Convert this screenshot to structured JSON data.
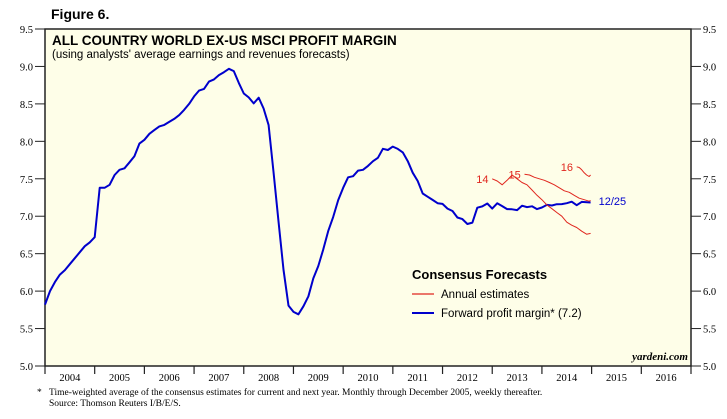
{
  "figure_label": "Figure 6.",
  "footnote": {
    "marker": "*",
    "text": "Time-weighted average of the consensus estimates for current and next year. Monthly through December 2005, weekly thereafter.",
    "source": "Source: Thomson Reuters I/B/E/S."
  },
  "colors": {
    "plot_background": "#fefee8",
    "forward": "#0000cc",
    "annual": "#e0271f",
    "axis": "#222222"
  },
  "chart_data": {
    "type": "line",
    "title": "ALL COUNTRY WORLD EX-US MSCI PROFIT MARGIN",
    "subtitle": "(using analysts' average earnings and revenues forecasts)",
    "xlabel": "",
    "ylabel": "",
    "xlim": [
      2004.0,
      2017.0
    ],
    "ylim": [
      5.0,
      9.5
    ],
    "x_ticks": [
      "2004",
      "2005",
      "2006",
      "2007",
      "2008",
      "2009",
      "2010",
      "2011",
      "2012",
      "2013",
      "2014",
      "2015",
      "2016"
    ],
    "y_ticks_left": [
      "5.0",
      "5.5",
      "6.0",
      "6.5",
      "7.0",
      "7.5",
      "8.0",
      "8.5",
      "9.0",
      "9.5"
    ],
    "y_ticks_right": [
      "5.0",
      "5.5",
      "6.0",
      "6.5",
      "7.0",
      "7.5",
      "8.0",
      "8.5",
      "9.0",
      "9.5"
    ],
    "grid": false,
    "legend": {
      "title": "Consensus Forecasts",
      "placement": "bottom-right",
      "entries": [
        {
          "label": "Annual estimates",
          "series": "annual"
        },
        {
          "label": "Forward profit margin* (7.2)",
          "series": "forward"
        }
      ]
    },
    "watermark": "yardeni.com",
    "annotations": [
      {
        "text": "14",
        "series": "annual-2014"
      },
      {
        "text": "15",
        "series": "annual-2015"
      },
      {
        "text": "16",
        "series": "annual-2016"
      },
      {
        "text": "12/25",
        "series": "forward"
      }
    ],
    "series": [
      {
        "name": "Forward profit margin",
        "key": "forward",
        "x": [
          2004.0,
          2004.1,
          2004.2,
          2004.3,
          2004.4,
          2004.5,
          2004.6,
          2004.7,
          2004.8,
          2004.9,
          2005.0,
          2005.1,
          2005.2,
          2005.3,
          2005.4,
          2005.5,
          2005.6,
          2005.7,
          2005.8,
          2005.9,
          2006.0,
          2006.1,
          2006.2,
          2006.3,
          2006.4,
          2006.5,
          2006.6,
          2006.7,
          2006.8,
          2006.9,
          2007.0,
          2007.1,
          2007.2,
          2007.3,
          2007.4,
          2007.5,
          2007.6,
          2007.7,
          2007.8,
          2007.9,
          2008.0,
          2008.1,
          2008.2,
          2008.3,
          2008.4,
          2008.5,
          2008.6,
          2008.7,
          2008.8,
          2008.9,
          2009.0,
          2009.1,
          2009.2,
          2009.3,
          2009.4,
          2009.5,
          2009.6,
          2009.7,
          2009.8,
          2009.9,
          2010.0,
          2010.1,
          2010.2,
          2010.3,
          2010.4,
          2010.5,
          2010.6,
          2010.7,
          2010.8,
          2010.9,
          2011.0,
          2011.1,
          2011.2,
          2011.3,
          2011.4,
          2011.5,
          2011.6,
          2011.7,
          2011.8,
          2011.9,
          2012.0,
          2012.1,
          2012.2,
          2012.3,
          2012.4,
          2012.5,
          2012.6,
          2012.7,
          2012.8,
          2012.9,
          2013.0,
          2013.1,
          2013.2,
          2013.3,
          2013.4,
          2013.5,
          2013.6,
          2013.7,
          2013.8,
          2013.9,
          2014.0,
          2014.1,
          2014.2,
          2014.3,
          2014.4,
          2014.5,
          2014.6,
          2014.7,
          2014.8,
          2014.98
        ],
        "values": [
          5.82,
          6.0,
          6.12,
          6.22,
          6.28,
          6.36,
          6.44,
          6.52,
          6.6,
          6.65,
          6.72,
          7.38,
          7.38,
          7.42,
          7.55,
          7.62,
          7.64,
          7.72,
          7.8,
          7.97,
          8.02,
          8.1,
          8.15,
          8.2,
          8.22,
          8.26,
          8.3,
          8.35,
          8.42,
          8.5,
          8.6,
          8.66,
          8.72,
          8.78,
          8.84,
          8.88,
          8.92,
          8.98,
          8.92,
          8.8,
          8.62,
          8.6,
          8.5,
          8.58,
          8.45,
          8.2,
          7.6,
          6.9,
          6.3,
          5.8,
          5.72,
          5.7,
          5.78,
          5.95,
          6.15,
          6.35,
          6.55,
          6.8,
          7.0,
          7.2,
          7.4,
          7.5,
          7.55,
          7.6,
          7.62,
          7.68,
          7.72,
          7.8,
          7.88,
          7.9,
          7.92,
          7.9,
          7.86,
          7.72,
          7.6,
          7.45,
          7.32,
          7.25,
          7.22,
          7.18,
          7.15,
          7.12,
          7.05,
          7.0,
          6.95,
          6.9,
          6.92,
          7.1,
          7.15,
          7.15,
          7.12,
          7.16,
          7.14,
          7.1,
          7.08,
          7.1,
          7.12,
          7.14,
          7.12,
          7.1,
          7.12,
          7.14,
          7.16,
          7.14,
          7.18,
          7.16,
          7.2,
          7.15,
          7.18,
          7.2
        ]
      },
      {
        "name": "Annual estimates 2014",
        "key": "annual-2014",
        "x": [
          2013.0,
          2013.1,
          2013.2,
          2013.3,
          2013.4,
          2013.5,
          2013.6,
          2013.7,
          2013.8,
          2013.9,
          2014.0,
          2014.1,
          2014.2,
          2014.3,
          2014.4,
          2014.5,
          2014.6,
          2014.7,
          2014.8,
          2014.9,
          2014.98
        ],
        "values": [
          7.5,
          7.47,
          7.42,
          7.48,
          7.55,
          7.5,
          7.45,
          7.42,
          7.35,
          7.28,
          7.22,
          7.15,
          7.1,
          7.05,
          7.0,
          6.92,
          6.88,
          6.85,
          6.8,
          6.76,
          6.77
        ]
      },
      {
        "name": "Annual estimates 2015",
        "key": "annual-2015",
        "x": [
          2013.65,
          2013.75,
          2013.85,
          2013.95,
          2014.05,
          2014.15,
          2014.25,
          2014.35,
          2014.45,
          2014.55,
          2014.65,
          2014.75,
          2014.85,
          2014.95,
          2014.98
        ],
        "values": [
          7.56,
          7.55,
          7.52,
          7.5,
          7.48,
          7.45,
          7.42,
          7.38,
          7.34,
          7.32,
          7.28,
          7.24,
          7.22,
          7.2,
          7.21
        ]
      },
      {
        "name": "Annual estimates 2016",
        "key": "annual-2016",
        "x": [
          2014.7,
          2014.75,
          2014.8,
          2014.85,
          2014.9,
          2014.95,
          2014.98
        ],
        "values": [
          7.66,
          7.65,
          7.62,
          7.58,
          7.55,
          7.53,
          7.55
        ]
      }
    ]
  }
}
